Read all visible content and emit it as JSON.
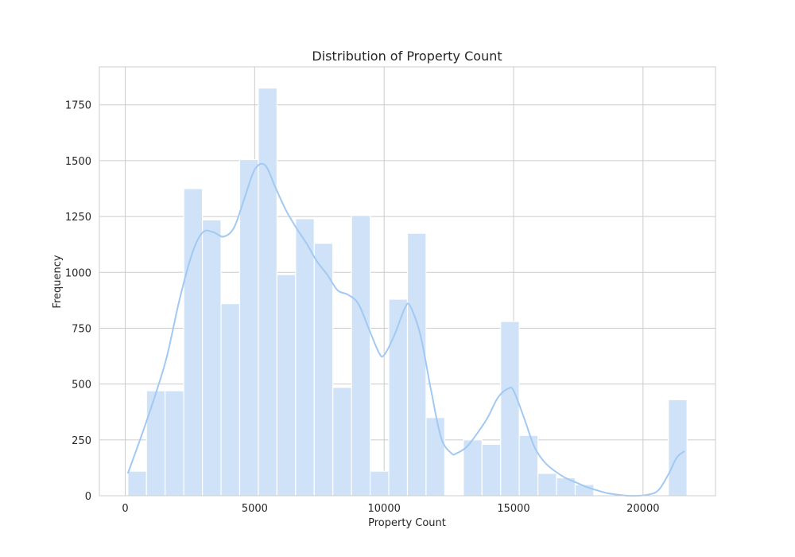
{
  "chart_data": {
    "type": "bar",
    "title": "Distribution of Property Count",
    "xlabel": "Property Count",
    "ylabel": "Frequency",
    "xlim": [
      -1000,
      22800
    ],
    "ylim": [
      0,
      1920
    ],
    "xticks": [
      0,
      5000,
      10000,
      15000,
      20000
    ],
    "yticks": [
      0,
      250,
      500,
      750,
      1000,
      1250,
      1500,
      1750
    ],
    "grid": true,
    "bin_edges": [
      100,
      820,
      1540,
      2260,
      2980,
      3700,
      4420,
      5140,
      5860,
      6580,
      7300,
      8020,
      8740,
      9460,
      10180,
      10900,
      11620,
      12340,
      13060,
      13780,
      14500,
      15220,
      15940,
      16660,
      17380,
      18100,
      18820,
      19540,
      20260,
      20980,
      21700
    ],
    "values": [
      110,
      470,
      470,
      1375,
      1235,
      860,
      1505,
      1825,
      990,
      1240,
      1130,
      485,
      1255,
      110,
      880,
      1175,
      350,
      0,
      250,
      230,
      780,
      270,
      100,
      80,
      50,
      0,
      0,
      0,
      0,
      430
    ],
    "kde": {
      "x": [
        100,
        600,
        1100,
        1600,
        2100,
        2600,
        3000,
        3400,
        3800,
        4200,
        4600,
        5000,
        5400,
        5800,
        6200,
        6600,
        7000,
        7400,
        7800,
        8200,
        8600,
        9000,
        9400,
        9800,
        10000,
        10400,
        10800,
        11000,
        11400,
        11800,
        12200,
        12600,
        12800,
        13200,
        13600,
        14000,
        14400,
        14800,
        15000,
        15400,
        15800,
        16200,
        16600,
        17000,
        17400,
        17800,
        18200,
        18600,
        19000,
        19400,
        19800,
        20200,
        20600,
        21000,
        21300,
        21600
      ],
      "y": [
        100,
        260,
        430,
        620,
        880,
        1090,
        1180,
        1180,
        1160,
        1200,
        1330,
        1460,
        1480,
        1380,
        1280,
        1200,
        1130,
        1050,
        990,
        920,
        900,
        860,
        750,
        640,
        630,
        720,
        840,
        850,
        720,
        480,
        260,
        190,
        190,
        220,
        280,
        350,
        440,
        480,
        470,
        350,
        220,
        150,
        110,
        80,
        60,
        40,
        25,
        12,
        5,
        0,
        0,
        5,
        25,
        100,
        170,
        200
      ]
    },
    "bar_color": "#cfe2f7",
    "line_color": "#a1c9f4",
    "grid_color": "#cccccc"
  }
}
